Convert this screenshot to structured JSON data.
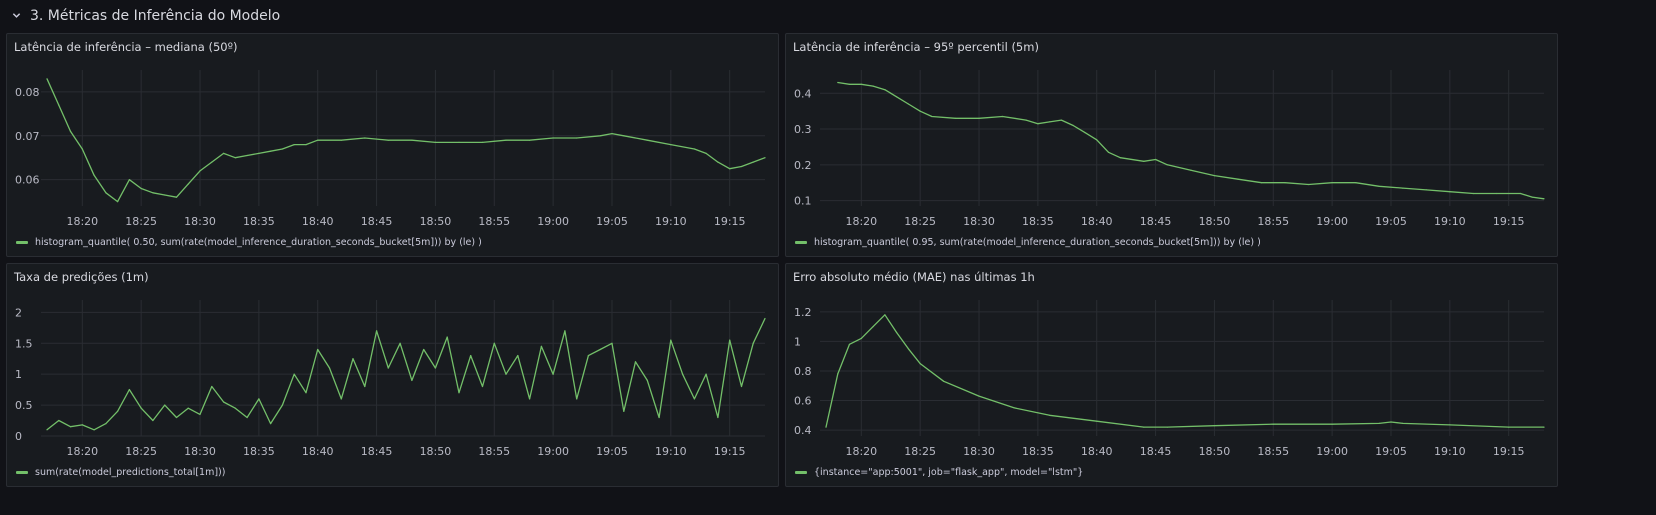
{
  "row": {
    "title": "3. Métricas de Inferência do Modelo",
    "icon": "chevron-down-icon"
  },
  "colors": {
    "series": "#73bf69",
    "grid": "#2a2d33",
    "panel_bg": "#181b1f",
    "page_bg": "#111217"
  },
  "time_labels": [
    "18:20",
    "18:25",
    "18:30",
    "18:35",
    "18:40",
    "18:45",
    "18:50",
    "18:55",
    "19:00",
    "19:05",
    "19:10",
    "19:15"
  ],
  "panels": [
    {
      "title": "Latência de inferência – mediana (50º)",
      "legend": "histogram_quantile( 0.50, sum(rate(model_inference_duration_seconds_bucket[5m])) by (le) )",
      "chart_data": {
        "type": "line",
        "title": "Latência de inferência – mediana (50º)",
        "x_tick_labels": [
          "18:20",
          "18:25",
          "18:30",
          "18:35",
          "18:40",
          "18:45",
          "18:50",
          "18:55",
          "19:00",
          "19:05",
          "19:10",
          "19:15"
        ],
        "y_tick_labels": [
          "0.06",
          "0.07",
          "0.08"
        ],
        "ylim": [
          0.054,
          0.085
        ],
        "x_domain": [
          "18:17",
          "19:18"
        ],
        "series": [
          {
            "name": "histogram_quantile( 0.50, sum(rate(model_inference_duration_seconds_bucket[5m])) by (le) )",
            "x": [
              "18:17",
              "18:18",
              "18:19",
              "18:20",
              "18:21",
              "18:22",
              "18:23",
              "18:24",
              "18:25",
              "18:26",
              "18:27",
              "18:28",
              "18:29",
              "18:30",
              "18:31",
              "18:32",
              "18:33",
              "18:34",
              "18:35",
              "18:36",
              "18:37",
              "18:38",
              "18:39",
              "18:40",
              "18:42",
              "18:44",
              "18:46",
              "18:48",
              "18:50",
              "18:52",
              "18:54",
              "18:56",
              "18:58",
              "19:00",
              "19:02",
              "19:04",
              "19:05",
              "19:06",
              "19:08",
              "19:10",
              "19:12",
              "19:13",
              "19:14",
              "19:15",
              "19:16",
              "19:17",
              "19:18"
            ],
            "values": [
              0.083,
              0.077,
              0.071,
              0.067,
              0.061,
              0.057,
              0.055,
              0.06,
              0.058,
              0.057,
              0.0565,
              0.056,
              0.059,
              0.062,
              0.064,
              0.066,
              0.065,
              0.0655,
              0.066,
              0.0665,
              0.067,
              0.068,
              0.068,
              0.069,
              0.069,
              0.0695,
              0.069,
              0.069,
              0.0685,
              0.0685,
              0.0685,
              0.069,
              0.069,
              0.0695,
              0.0695,
              0.07,
              0.0705,
              0.07,
              0.069,
              0.068,
              0.067,
              0.066,
              0.064,
              0.0625,
              0.063,
              0.064,
              0.065
            ]
          }
        ]
      }
    },
    {
      "title": "Latência de inferência – 95º percentil (5m)",
      "legend": "histogram_quantile( 0.95, sum(rate(model_inference_duration_seconds_bucket[5m])) by (le) )",
      "chart_data": {
        "type": "line",
        "title": "Latência de inferência – 95º percentil (5m)",
        "x_tick_labels": [
          "18:20",
          "18:25",
          "18:30",
          "18:35",
          "18:40",
          "18:45",
          "18:50",
          "18:55",
          "19:00",
          "19:05",
          "19:10",
          "19:15"
        ],
        "y_tick_labels": [
          "0.1",
          "0.2",
          "0.3",
          "0.4"
        ],
        "ylim": [
          0.085,
          0.465
        ],
        "x_domain": [
          "18:17",
          "19:18"
        ],
        "series": [
          {
            "name": "histogram_quantile( 0.95, sum(rate(model_inference_duration_seconds_bucket[5m])) by (le) )",
            "x": [
              "18:18",
              "18:19",
              "18:20",
              "18:21",
              "18:22",
              "18:23",
              "18:24",
              "18:25",
              "18:26",
              "18:28",
              "18:30",
              "18:32",
              "18:34",
              "18:35",
              "18:36",
              "18:37",
              "18:38",
              "18:39",
              "18:40",
              "18:41",
              "18:42",
              "18:44",
              "18:45",
              "18:46",
              "18:48",
              "18:50",
              "18:52",
              "18:54",
              "18:56",
              "18:58",
              "19:00",
              "19:02",
              "19:04",
              "19:06",
              "19:08",
              "19:10",
              "19:12",
              "19:14",
              "19:16",
              "19:17",
              "19:18"
            ],
            "values": [
              0.43,
              0.425,
              0.425,
              0.42,
              0.41,
              0.39,
              0.37,
              0.35,
              0.335,
              0.33,
              0.33,
              0.335,
              0.325,
              0.315,
              0.32,
              0.325,
              0.31,
              0.29,
              0.27,
              0.235,
              0.22,
              0.21,
              0.215,
              0.2,
              0.185,
              0.17,
              0.16,
              0.15,
              0.15,
              0.145,
              0.15,
              0.15,
              0.14,
              0.135,
              0.13,
              0.125,
              0.12,
              0.12,
              0.12,
              0.11,
              0.105
            ]
          }
        ]
      }
    },
    {
      "title": "Taxa de predições (1m)",
      "legend": "sum(rate(model_predictions_total[1m]))",
      "chart_data": {
        "type": "line",
        "title": "Taxa de predições (1m)",
        "x_tick_labels": [
          "18:20",
          "18:25",
          "18:30",
          "18:35",
          "18:40",
          "18:45",
          "18:50",
          "18:55",
          "19:00",
          "19:05",
          "19:10",
          "19:15"
        ],
        "y_tick_labels": [
          "0",
          "0.5",
          "1",
          "1.5",
          "2"
        ],
        "ylim": [
          0,
          2.2
        ],
        "x_domain": [
          "18:17",
          "19:18"
        ],
        "series": [
          {
            "name": "sum(rate(model_predictions_total[1m]))",
            "x": [
              "18:17",
              "18:18",
              "18:19",
              "18:20",
              "18:21",
              "18:22",
              "18:23",
              "18:24",
              "18:25",
              "18:26",
              "18:27",
              "18:28",
              "18:29",
              "18:30",
              "18:31",
              "18:32",
              "18:33",
              "18:34",
              "18:35",
              "18:36",
              "18:37",
              "18:38",
              "18:39",
              "18:40",
              "18:41",
              "18:42",
              "18:43",
              "18:44",
              "18:45",
              "18:46",
              "18:47",
              "18:48",
              "18:49",
              "18:50",
              "18:51",
              "18:52",
              "18:53",
              "18:54",
              "18:55",
              "18:56",
              "18:57",
              "18:58",
              "18:59",
              "19:00",
              "19:01",
              "19:02",
              "19:03",
              "19:04",
              "19:05",
              "19:06",
              "19:07",
              "19:08",
              "19:09",
              "19:10",
              "19:11",
              "19:12",
              "19:13",
              "19:14",
              "19:15",
              "19:16",
              "19:17",
              "19:18"
            ],
            "values": [
              0.1,
              0.25,
              0.15,
              0.18,
              0.1,
              0.2,
              0.4,
              0.75,
              0.45,
              0.25,
              0.5,
              0.3,
              0.45,
              0.35,
              0.8,
              0.55,
              0.45,
              0.3,
              0.6,
              0.2,
              0.5,
              1.0,
              0.7,
              1.4,
              1.1,
              0.6,
              1.25,
              0.8,
              1.7,
              1.1,
              1.5,
              0.9,
              1.4,
              1.1,
              1.6,
              0.7,
              1.3,
              0.8,
              1.5,
              1.0,
              1.3,
              0.6,
              1.45,
              1.0,
              1.7,
              0.6,
              1.3,
              1.4,
              1.5,
              0.4,
              1.2,
              0.9,
              0.3,
              1.55,
              1.0,
              0.6,
              1.0,
              0.3,
              1.55,
              0.8,
              1.5,
              1.9
            ]
          }
        ]
      }
    },
    {
      "title": "Erro absoluto médio (MAE) nas últimas 1h",
      "legend": "{instance=\"app:5001\", job=\"flask_app\", model=\"lstm\"}",
      "chart_data": {
        "type": "line",
        "title": "Erro absoluto médio (MAE) nas últimas 1h",
        "x_tick_labels": [
          "18:20",
          "18:25",
          "18:30",
          "18:35",
          "18:40",
          "18:45",
          "18:50",
          "18:55",
          "19:00",
          "19:05",
          "19:10",
          "19:15"
        ],
        "y_tick_labels": [
          "0.4",
          "0.6",
          "0.8",
          "1",
          "1.2"
        ],
        "ylim": [
          0.36,
          1.28
        ],
        "x_domain": [
          "18:17",
          "19:18"
        ],
        "series": [
          {
            "name": "{instance=\"app:5001\", job=\"flask_app\", model=\"lstm\"}",
            "x": [
              "18:17",
              "18:18",
              "18:19",
              "18:20",
              "18:21",
              "18:22",
              "18:23",
              "18:24",
              "18:25",
              "18:27",
              "18:30",
              "18:33",
              "18:36",
              "18:40",
              "18:44",
              "18:46",
              "18:50",
              "18:55",
              "19:00",
              "19:04",
              "19:05",
              "19:06",
              "19:10",
              "19:15",
              "19:18"
            ],
            "values": [
              0.42,
              0.78,
              0.98,
              1.02,
              1.1,
              1.18,
              1.06,
              0.95,
              0.85,
              0.73,
              0.63,
              0.55,
              0.5,
              0.46,
              0.42,
              0.42,
              0.43,
              0.44,
              0.44,
              0.445,
              0.455,
              0.445,
              0.435,
              0.42,
              0.42
            ]
          }
        ]
      }
    }
  ]
}
